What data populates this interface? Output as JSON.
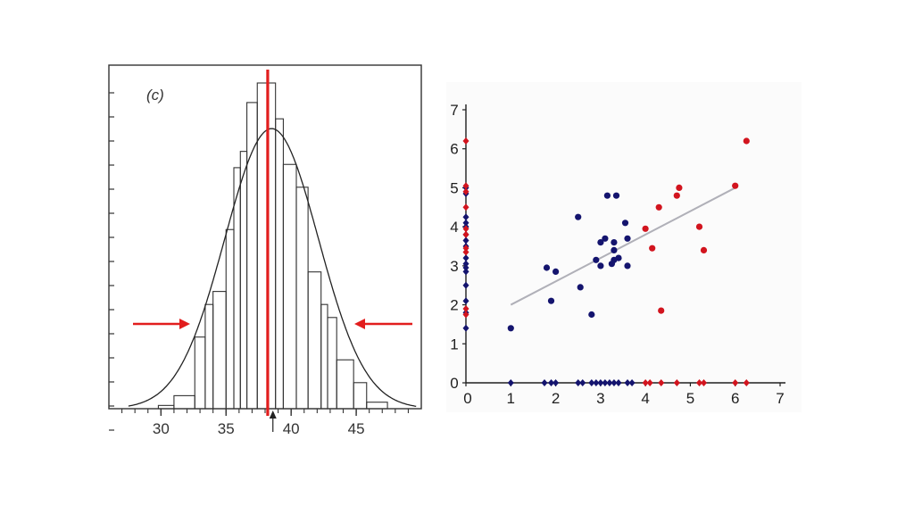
{
  "chart_data": [
    {
      "type": "histogram",
      "panel_label": "(c)",
      "xlim": [
        26,
        50
      ],
      "ylim": [
        0,
        1
      ],
      "x_ticks": [
        30,
        35,
        40,
        45
      ],
      "bins": [
        {
          "x0": 29.8,
          "x1": 31.0,
          "y": 0.01
        },
        {
          "x0": 31.0,
          "x1": 32.6,
          "y": 0.04
        },
        {
          "x0": 32.6,
          "x1": 33.4,
          "y": 0.22
        },
        {
          "x0": 33.4,
          "x1": 34.0,
          "y": 0.32
        },
        {
          "x0": 34.0,
          "x1": 35.0,
          "y": 0.36
        },
        {
          "x0": 35.0,
          "x1": 35.6,
          "y": 0.55
        },
        {
          "x0": 35.6,
          "x1": 36.1,
          "y": 0.74
        },
        {
          "x0": 36.1,
          "x1": 36.6,
          "y": 0.79
        },
        {
          "x0": 36.6,
          "x1": 37.4,
          "y": 0.94
        },
        {
          "x0": 37.4,
          "x1": 38.8,
          "y": 1.0
        },
        {
          "x0": 38.8,
          "x1": 39.4,
          "y": 0.89
        },
        {
          "x0": 39.4,
          "x1": 40.4,
          "y": 0.75
        },
        {
          "x0": 40.4,
          "x1": 41.3,
          "y": 0.68
        },
        {
          "x0": 41.3,
          "x1": 42.3,
          "y": 0.42
        },
        {
          "x0": 42.3,
          "x1": 42.8,
          "y": 0.32
        },
        {
          "x0": 42.8,
          "x1": 43.5,
          "y": 0.28
        },
        {
          "x0": 43.5,
          "x1": 44.8,
          "y": 0.15
        },
        {
          "x0": 44.8,
          "x1": 45.8,
          "y": 0.08
        },
        {
          "x0": 45.8,
          "x1": 47.4,
          "y": 0.02
        }
      ],
      "fit_curve": {
        "type": "gaussian",
        "mean": 38.5,
        "sd": 3.6,
        "peak": 0.86
      },
      "mean_line_x": 38.2,
      "arrow_x": 38.6,
      "color_accent": "#e21d1d"
    },
    {
      "type": "scatter",
      "xlim": [
        0,
        7
      ],
      "ylim": [
        0,
        7
      ],
      "x_ticks": [
        "0",
        "1",
        "2",
        "3",
        "4",
        "5",
        "6",
        "7"
      ],
      "y_ticks": [
        "0",
        "1",
        "2",
        "3",
        "4",
        "5",
        "6",
        "7"
      ],
      "regression_line": {
        "x": [
          1.0,
          6.0
        ],
        "y": [
          2.0,
          5.0
        ],
        "color": "#b0b0b8"
      },
      "series": [
        {
          "name": "blue",
          "color": "#14146e",
          "points": [
            [
              1.0,
              1.4
            ],
            [
              1.8,
              2.95
            ],
            [
              1.9,
              2.1
            ],
            [
              2.0,
              2.85
            ],
            [
              2.5,
              4.25
            ],
            [
              2.55,
              2.45
            ],
            [
              2.8,
              1.75
            ],
            [
              2.9,
              3.15
            ],
            [
              3.0,
              3.0
            ],
            [
              3.0,
              3.6
            ],
            [
              3.1,
              3.7
            ],
            [
              3.15,
              4.8
            ],
            [
              3.25,
              3.05
            ],
            [
              3.3,
              3.15
            ],
            [
              3.3,
              3.4
            ],
            [
              3.35,
              4.8
            ],
            [
              3.4,
              3.2
            ],
            [
              3.55,
              4.1
            ],
            [
              3.6,
              3.7
            ],
            [
              3.6,
              3.0
            ],
            [
              3.3,
              3.6
            ]
          ],
          "x_axis_marks": [
            1.0,
            1.75,
            1.9,
            2.0,
            2.5,
            2.6,
            2.8,
            2.9,
            3.0,
            3.1,
            3.2,
            3.3,
            3.4,
            3.6,
            3.7
          ],
          "y_axis_marks": [
            1.4,
            1.8,
            2.1,
            2.5,
            2.85,
            2.95,
            3.05,
            3.2,
            3.5,
            3.65,
            3.8,
            4.0,
            4.1,
            4.25,
            4.85,
            5.0
          ]
        },
        {
          "name": "red",
          "color": "#d2141e",
          "points": [
            [
              4.0,
              3.95
            ],
            [
              4.15,
              3.45
            ],
            [
              4.3,
              4.5
            ],
            [
              4.35,
              1.85
            ],
            [
              4.7,
              4.8
            ],
            [
              4.75,
              5.0
            ],
            [
              5.2,
              4.0
            ],
            [
              5.3,
              3.4
            ],
            [
              6.0,
              5.05
            ],
            [
              6.25,
              6.2
            ]
          ],
          "x_axis_marks": [
            4.0,
            4.1,
            4.35,
            4.7,
            5.2,
            5.3,
            6.0,
            6.25
          ],
          "y_axis_marks": [
            1.75,
            1.9,
            3.35,
            3.45,
            3.8,
            3.95,
            4.5,
            4.9,
            5.05,
            6.2
          ]
        }
      ]
    }
  ]
}
